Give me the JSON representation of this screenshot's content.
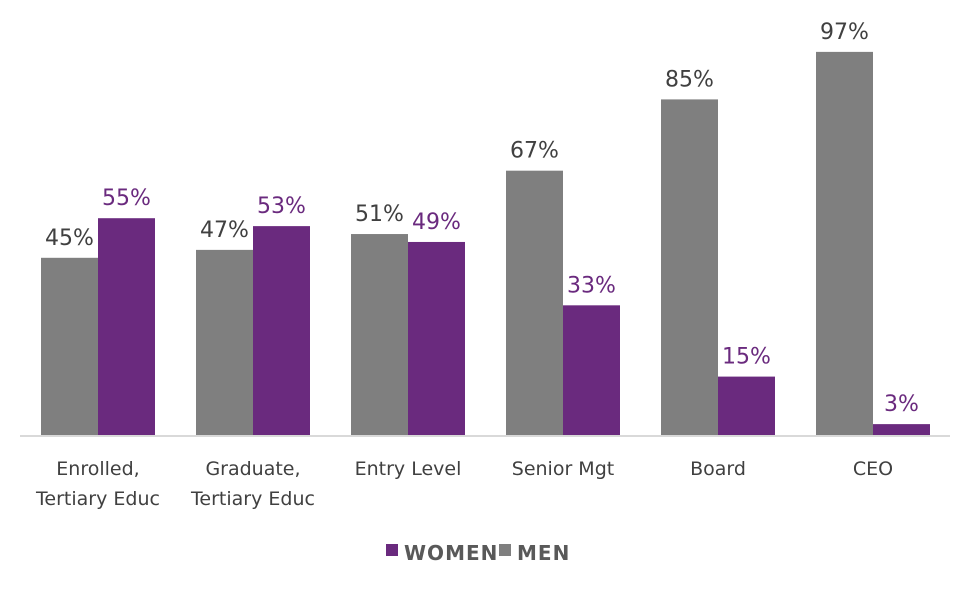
{
  "chart_data": {
    "type": "bar",
    "title": "",
    "xlabel": "",
    "ylabel": "",
    "ylim": [
      0,
      100
    ],
    "grid": false,
    "legend_position": "bottom",
    "categories": [
      [
        "Enrolled,",
        "Tertiary Educ"
      ],
      [
        "Graduate,",
        "Tertiary Educ"
      ],
      [
        "Entry Level"
      ],
      [
        "Senior Mgt"
      ],
      [
        "Board"
      ],
      [
        "CEO"
      ]
    ],
    "series": [
      {
        "name": "MEN",
        "color": "#7f7f7f",
        "label_color": "#404040",
        "values": [
          45,
          47,
          51,
          67,
          85,
          97
        ],
        "labels": [
          "45%",
          "47%",
          "51%",
          "67%",
          "85%",
          "97%"
        ]
      },
      {
        "name": "WOMEN",
        "color": "#6a2a7e",
        "label_color": "#6a2a7e",
        "values": [
          55,
          53,
          49,
          33,
          15,
          3
        ],
        "labels": [
          "55%",
          "53%",
          "49%",
          "33%",
          "15%",
          "3%"
        ]
      }
    ],
    "legend": [
      {
        "name": "WOMEN",
        "color": "#6a2a7e"
      },
      {
        "name": "MEN",
        "color": "#7f7f7f"
      }
    ],
    "axis_color": "#d9d9d9"
  }
}
